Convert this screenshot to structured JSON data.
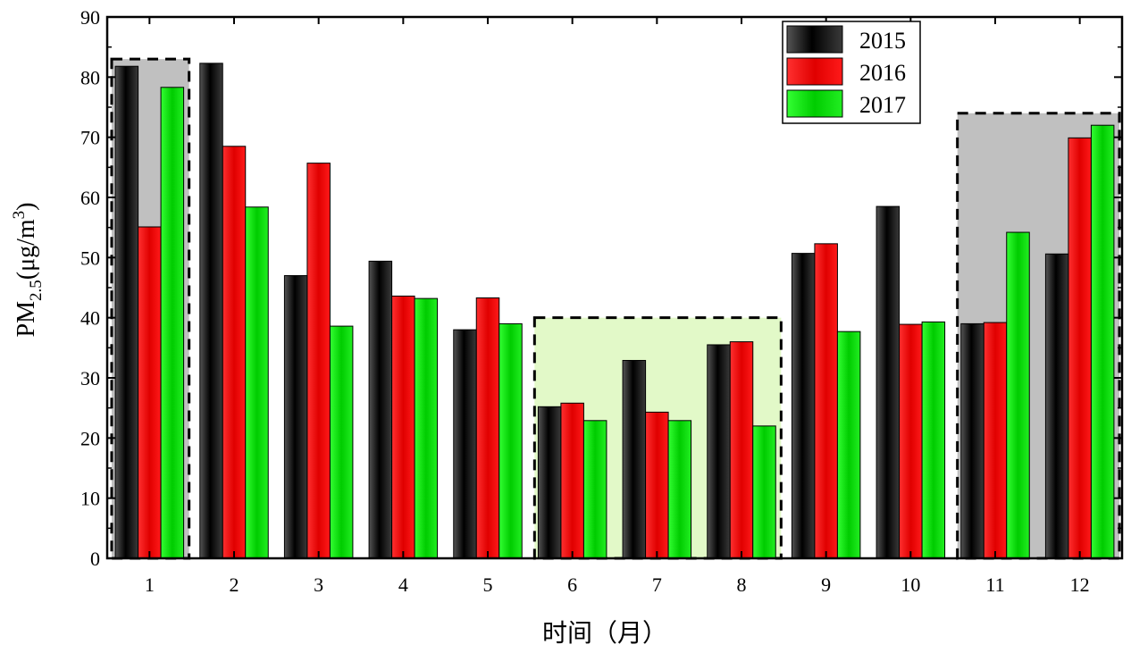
{
  "chart_data": {
    "type": "bar",
    "xlabel": "时间（月）",
    "ylabel": {
      "main": "PM",
      "sub": "2.5",
      "unit_pre": "(μg/m",
      "unit_sup": "3",
      "unit_post": ")"
    },
    "ylim": [
      0,
      90
    ],
    "yticks": [
      "0",
      "10",
      "20",
      "30",
      "40",
      "50",
      "60",
      "70",
      "80",
      "90"
    ],
    "categories": [
      "1",
      "2",
      "3",
      "4",
      "5",
      "6",
      "7",
      "8",
      "9",
      "10",
      "11",
      "12"
    ],
    "series": [
      {
        "name": "2015",
        "color": "#1a1a1a",
        "values": [
          81.8,
          82.3,
          47.0,
          49.4,
          38.0,
          25.2,
          32.9,
          35.5,
          50.7,
          58.5,
          39.0,
          50.6
        ]
      },
      {
        "name": "2016",
        "color": "#ff0000",
        "values": [
          55.1,
          68.5,
          65.7,
          43.6,
          43.3,
          25.8,
          24.3,
          36.0,
          52.3,
          38.9,
          39.2,
          69.9
        ]
      },
      {
        "name": "2017",
        "color": "#00dd00",
        "values": [
          78.3,
          58.4,
          38.6,
          43.2,
          39.0,
          22.9,
          22.9,
          22.0,
          37.7,
          39.3,
          54.2,
          72.0
        ]
      }
    ],
    "legend_position": "top-right",
    "grid": false,
    "highlight_regions": [
      {
        "months": [
          "1"
        ],
        "fill": "#c0c0c0",
        "top_value": 83
      },
      {
        "months": [
          "6",
          "7",
          "8"
        ],
        "fill": "#e2f9c8",
        "top_value": 40
      },
      {
        "months": [
          "11",
          "12"
        ],
        "fill": "#c0c0c0",
        "top_value": 74
      }
    ]
  }
}
